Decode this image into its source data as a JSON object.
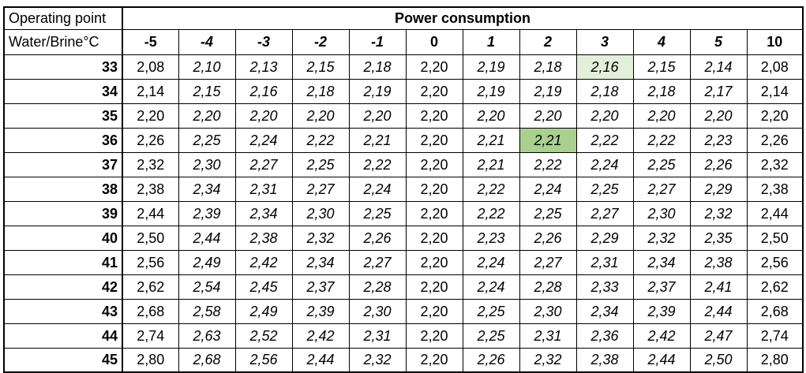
{
  "header": {
    "corner_top": "Operating point",
    "corner_bottom": "Water/Brine°C",
    "title": "Power consumption"
  },
  "columns": [
    {
      "label": "-5",
      "italic": false
    },
    {
      "label": "-4",
      "italic": true
    },
    {
      "label": "-3",
      "italic": true
    },
    {
      "label": "-2",
      "italic": true
    },
    {
      "label": "-1",
      "italic": true
    },
    {
      "label": "0",
      "italic": false
    },
    {
      "label": "1",
      "italic": true
    },
    {
      "label": "2",
      "italic": true
    },
    {
      "label": "3",
      "italic": true
    },
    {
      "label": "4",
      "italic": true
    },
    {
      "label": "5",
      "italic": true
    },
    {
      "label": "10",
      "italic": false
    }
  ],
  "rows": [
    {
      "label": "33",
      "values": [
        "2,08",
        "2,10",
        "2,13",
        "2,15",
        "2,18",
        "2,20",
        "2,19",
        "2,18",
        "2,16",
        "2,15",
        "2,14",
        "2,08"
      ]
    },
    {
      "label": "34",
      "values": [
        "2,14",
        "2,15",
        "2,16",
        "2,18",
        "2,19",
        "2,20",
        "2,19",
        "2,19",
        "2,18",
        "2,18",
        "2,17",
        "2,14"
      ]
    },
    {
      "label": "35",
      "values": [
        "2,20",
        "2,20",
        "2,20",
        "2,20",
        "2,20",
        "2,20",
        "2,20",
        "2,20",
        "2,20",
        "2,20",
        "2,20",
        "2,20"
      ]
    },
    {
      "label": "36",
      "values": [
        "2,26",
        "2,25",
        "2,24",
        "2,22",
        "2,21",
        "2,20",
        "2,21",
        "2,21",
        "2,22",
        "2,22",
        "2,23",
        "2,26"
      ]
    },
    {
      "label": "37",
      "values": [
        "2,32",
        "2,30",
        "2,27",
        "2,25",
        "2,22",
        "2,20",
        "2,21",
        "2,22",
        "2,24",
        "2,25",
        "2,26",
        "2,32"
      ]
    },
    {
      "label": "38",
      "values": [
        "2,38",
        "2,34",
        "2,31",
        "2,27",
        "2,24",
        "2,20",
        "2,22",
        "2,24",
        "2,25",
        "2,27",
        "2,29",
        "2,38"
      ]
    },
    {
      "label": "39",
      "values": [
        "2,44",
        "2,39",
        "2,34",
        "2,30",
        "2,25",
        "2,20",
        "2,22",
        "2,25",
        "2,27",
        "2,30",
        "2,32",
        "2,44"
      ]
    },
    {
      "label": "40",
      "values": [
        "2,50",
        "2,44",
        "2,38",
        "2,32",
        "2,26",
        "2,20",
        "2,23",
        "2,26",
        "2,29",
        "2,32",
        "2,35",
        "2,50"
      ]
    },
    {
      "label": "41",
      "values": [
        "2,56",
        "2,49",
        "2,42",
        "2,34",
        "2,27",
        "2,20",
        "2,24",
        "2,27",
        "2,31",
        "2,34",
        "2,38",
        "2,56"
      ]
    },
    {
      "label": "42",
      "values": [
        "2,62",
        "2,54",
        "2,45",
        "2,37",
        "2,28",
        "2,20",
        "2,24",
        "2,28",
        "2,33",
        "2,37",
        "2,41",
        "2,62"
      ]
    },
    {
      "label": "43",
      "values": [
        "2,68",
        "2,58",
        "2,49",
        "2,39",
        "2,30",
        "2,20",
        "2,25",
        "2,30",
        "2,34",
        "2,39",
        "2,44",
        "2,68"
      ]
    },
    {
      "label": "44",
      "values": [
        "2,74",
        "2,63",
        "2,52",
        "2,42",
        "2,31",
        "2,20",
        "2,25",
        "2,31",
        "2,36",
        "2,42",
        "2,47",
        "2,74"
      ]
    },
    {
      "label": "45",
      "values": [
        "2,80",
        "2,68",
        "2,56",
        "2,44",
        "2,32",
        "2,20",
        "2,26",
        "2,32",
        "2,38",
        "2,44",
        "2,50",
        "2,80"
      ]
    }
  ],
  "highlights": [
    {
      "row": 0,
      "col": 8,
      "color": "#e2efda"
    },
    {
      "row": 3,
      "col": 7,
      "color": "#a9d08e"
    }
  ]
}
